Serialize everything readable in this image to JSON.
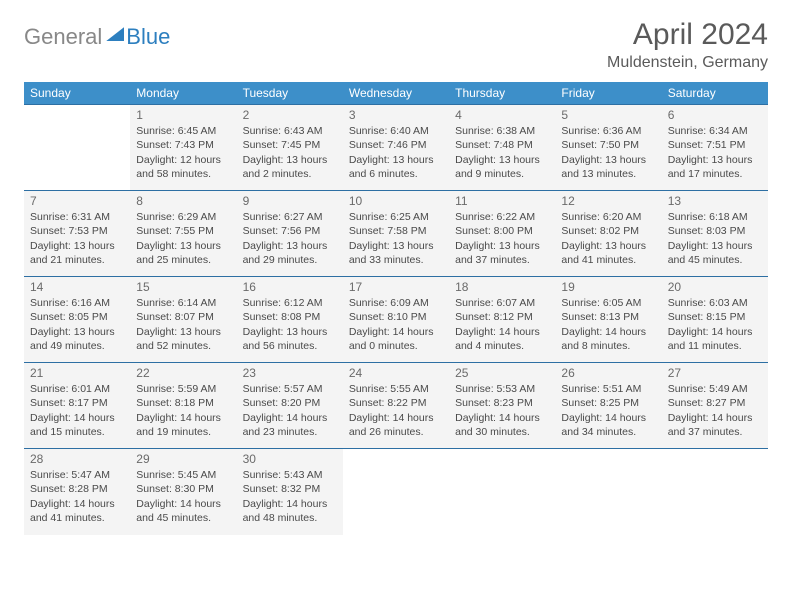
{
  "logo": {
    "part1": "General",
    "part2": "Blue"
  },
  "title": "April 2024",
  "location": "Muldenstein, Germany",
  "day_headers": [
    "Sunday",
    "Monday",
    "Tuesday",
    "Wednesday",
    "Thursday",
    "Friday",
    "Saturday"
  ],
  "colors": {
    "header_bg": "#3d8fc9",
    "header_text": "#ffffff",
    "cell_bg": "#f4f4f4",
    "border": "#2d6fa3",
    "logo_gray": "#888888",
    "logo_blue": "#2d7fbf",
    "text": "#4a4a4a"
  },
  "fonts": {
    "title_size_pt": 22,
    "location_size_pt": 12,
    "header_size_pt": 9,
    "cell_size_pt": 8
  },
  "layout": {
    "columns": 7,
    "rows": 5,
    "first_day_column": 1
  },
  "weeks": [
    [
      null,
      {
        "n": "1",
        "sr": "Sunrise: 6:45 AM",
        "ss": "Sunset: 7:43 PM",
        "d1": "Daylight: 12 hours",
        "d2": "and 58 minutes."
      },
      {
        "n": "2",
        "sr": "Sunrise: 6:43 AM",
        "ss": "Sunset: 7:45 PM",
        "d1": "Daylight: 13 hours",
        "d2": "and 2 minutes."
      },
      {
        "n": "3",
        "sr": "Sunrise: 6:40 AM",
        "ss": "Sunset: 7:46 PM",
        "d1": "Daylight: 13 hours",
        "d2": "and 6 minutes."
      },
      {
        "n": "4",
        "sr": "Sunrise: 6:38 AM",
        "ss": "Sunset: 7:48 PM",
        "d1": "Daylight: 13 hours",
        "d2": "and 9 minutes."
      },
      {
        "n": "5",
        "sr": "Sunrise: 6:36 AM",
        "ss": "Sunset: 7:50 PM",
        "d1": "Daylight: 13 hours",
        "d2": "and 13 minutes."
      },
      {
        "n": "6",
        "sr": "Sunrise: 6:34 AM",
        "ss": "Sunset: 7:51 PM",
        "d1": "Daylight: 13 hours",
        "d2": "and 17 minutes."
      }
    ],
    [
      {
        "n": "7",
        "sr": "Sunrise: 6:31 AM",
        "ss": "Sunset: 7:53 PM",
        "d1": "Daylight: 13 hours",
        "d2": "and 21 minutes."
      },
      {
        "n": "8",
        "sr": "Sunrise: 6:29 AM",
        "ss": "Sunset: 7:55 PM",
        "d1": "Daylight: 13 hours",
        "d2": "and 25 minutes."
      },
      {
        "n": "9",
        "sr": "Sunrise: 6:27 AM",
        "ss": "Sunset: 7:56 PM",
        "d1": "Daylight: 13 hours",
        "d2": "and 29 minutes."
      },
      {
        "n": "10",
        "sr": "Sunrise: 6:25 AM",
        "ss": "Sunset: 7:58 PM",
        "d1": "Daylight: 13 hours",
        "d2": "and 33 minutes."
      },
      {
        "n": "11",
        "sr": "Sunrise: 6:22 AM",
        "ss": "Sunset: 8:00 PM",
        "d1": "Daylight: 13 hours",
        "d2": "and 37 minutes."
      },
      {
        "n": "12",
        "sr": "Sunrise: 6:20 AM",
        "ss": "Sunset: 8:02 PM",
        "d1": "Daylight: 13 hours",
        "d2": "and 41 minutes."
      },
      {
        "n": "13",
        "sr": "Sunrise: 6:18 AM",
        "ss": "Sunset: 8:03 PM",
        "d1": "Daylight: 13 hours",
        "d2": "and 45 minutes."
      }
    ],
    [
      {
        "n": "14",
        "sr": "Sunrise: 6:16 AM",
        "ss": "Sunset: 8:05 PM",
        "d1": "Daylight: 13 hours",
        "d2": "and 49 minutes."
      },
      {
        "n": "15",
        "sr": "Sunrise: 6:14 AM",
        "ss": "Sunset: 8:07 PM",
        "d1": "Daylight: 13 hours",
        "d2": "and 52 minutes."
      },
      {
        "n": "16",
        "sr": "Sunrise: 6:12 AM",
        "ss": "Sunset: 8:08 PM",
        "d1": "Daylight: 13 hours",
        "d2": "and 56 minutes."
      },
      {
        "n": "17",
        "sr": "Sunrise: 6:09 AM",
        "ss": "Sunset: 8:10 PM",
        "d1": "Daylight: 14 hours",
        "d2": "and 0 minutes."
      },
      {
        "n": "18",
        "sr": "Sunrise: 6:07 AM",
        "ss": "Sunset: 8:12 PM",
        "d1": "Daylight: 14 hours",
        "d2": "and 4 minutes."
      },
      {
        "n": "19",
        "sr": "Sunrise: 6:05 AM",
        "ss": "Sunset: 8:13 PM",
        "d1": "Daylight: 14 hours",
        "d2": "and 8 minutes."
      },
      {
        "n": "20",
        "sr": "Sunrise: 6:03 AM",
        "ss": "Sunset: 8:15 PM",
        "d1": "Daylight: 14 hours",
        "d2": "and 11 minutes."
      }
    ],
    [
      {
        "n": "21",
        "sr": "Sunrise: 6:01 AM",
        "ss": "Sunset: 8:17 PM",
        "d1": "Daylight: 14 hours",
        "d2": "and 15 minutes."
      },
      {
        "n": "22",
        "sr": "Sunrise: 5:59 AM",
        "ss": "Sunset: 8:18 PM",
        "d1": "Daylight: 14 hours",
        "d2": "and 19 minutes."
      },
      {
        "n": "23",
        "sr": "Sunrise: 5:57 AM",
        "ss": "Sunset: 8:20 PM",
        "d1": "Daylight: 14 hours",
        "d2": "and 23 minutes."
      },
      {
        "n": "24",
        "sr": "Sunrise: 5:55 AM",
        "ss": "Sunset: 8:22 PM",
        "d1": "Daylight: 14 hours",
        "d2": "and 26 minutes."
      },
      {
        "n": "25",
        "sr": "Sunrise: 5:53 AM",
        "ss": "Sunset: 8:23 PM",
        "d1": "Daylight: 14 hours",
        "d2": "and 30 minutes."
      },
      {
        "n": "26",
        "sr": "Sunrise: 5:51 AM",
        "ss": "Sunset: 8:25 PM",
        "d1": "Daylight: 14 hours",
        "d2": "and 34 minutes."
      },
      {
        "n": "27",
        "sr": "Sunrise: 5:49 AM",
        "ss": "Sunset: 8:27 PM",
        "d1": "Daylight: 14 hours",
        "d2": "and 37 minutes."
      }
    ],
    [
      {
        "n": "28",
        "sr": "Sunrise: 5:47 AM",
        "ss": "Sunset: 8:28 PM",
        "d1": "Daylight: 14 hours",
        "d2": "and 41 minutes."
      },
      {
        "n": "29",
        "sr": "Sunrise: 5:45 AM",
        "ss": "Sunset: 8:30 PM",
        "d1": "Daylight: 14 hours",
        "d2": "and 45 minutes."
      },
      {
        "n": "30",
        "sr": "Sunrise: 5:43 AM",
        "ss": "Sunset: 8:32 PM",
        "d1": "Daylight: 14 hours",
        "d2": "and 48 minutes."
      },
      null,
      null,
      null,
      null
    ]
  ]
}
